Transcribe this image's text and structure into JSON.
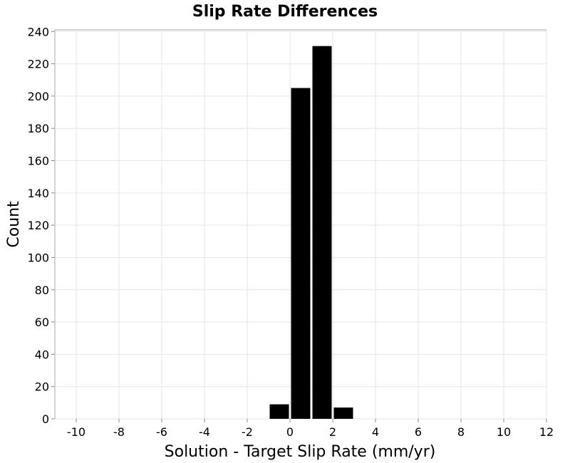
{
  "chart_data": {
    "type": "bar",
    "title": "Slip Rate Differences",
    "xlabel": "Solution - Target Slip Rate (mm/yr)",
    "ylabel": "Count",
    "xlim": [
      -11,
      12
    ],
    "ylim": [
      0,
      241
    ],
    "xticks": [
      -10,
      -8,
      -6,
      -4,
      -2,
      0,
      2,
      4,
      6,
      8,
      10,
      12
    ],
    "yticks": [
      0,
      20,
      40,
      60,
      80,
      100,
      120,
      140,
      160,
      180,
      200,
      220,
      240
    ],
    "bin_width": 1,
    "bins": [
      {
        "start": -1,
        "end": 0,
        "value": 9
      },
      {
        "start": 0,
        "end": 1,
        "value": 205
      },
      {
        "start": 1,
        "end": 2,
        "value": 231
      },
      {
        "start": 2,
        "end": 3,
        "value": 7
      }
    ],
    "grid": true,
    "bar_color": "#000000"
  }
}
